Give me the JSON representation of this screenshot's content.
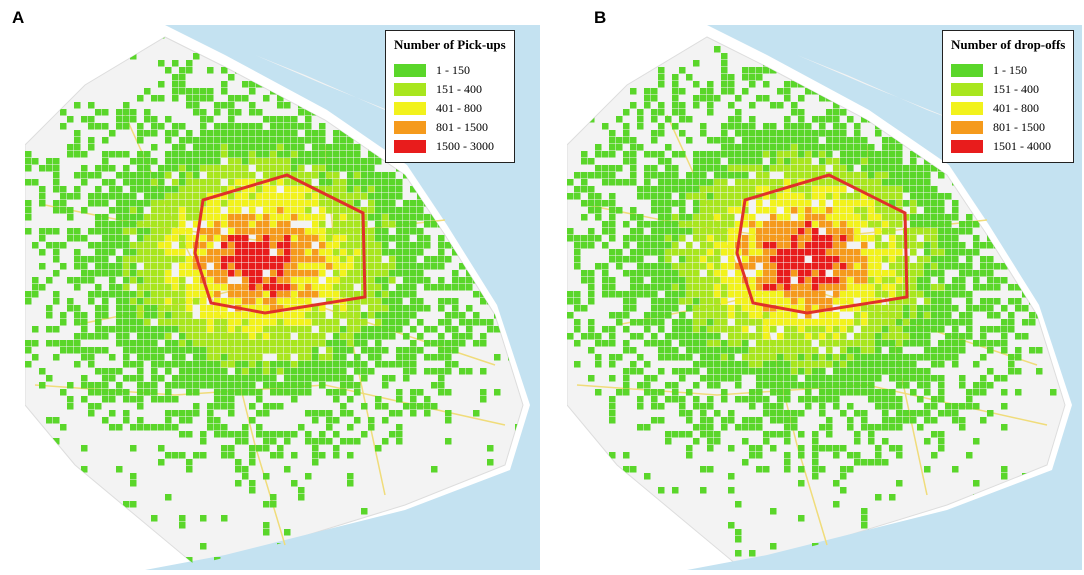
{
  "panels": [
    {
      "label": "A",
      "legend": {
        "title": "Number of Pick-ups",
        "items": [
          {
            "label": "1 - 150",
            "color": "#5ad62a"
          },
          {
            "label": "151 - 400",
            "color": "#a8e61e"
          },
          {
            "label": "401 - 800",
            "color": "#f2f21c"
          },
          {
            "label": "801 - 1500",
            "color": "#f59a1c"
          },
          {
            "label": "1500 - 3000",
            "color": "#e81c1c"
          }
        ]
      }
    },
    {
      "label": "B",
      "legend": {
        "title": "Number of drop-offs",
        "items": [
          {
            "label": "1 - 150",
            "color": "#5ad62a"
          },
          {
            "label": "151 - 400",
            "color": "#a8e61e"
          },
          {
            "label": "401 - 800",
            "color": "#f2f21c"
          },
          {
            "label": "801 - 1500",
            "color": "#f59a1c"
          },
          {
            "label": "1501 - 4000",
            "color": "#e81c1c"
          }
        ]
      }
    }
  ]
}
